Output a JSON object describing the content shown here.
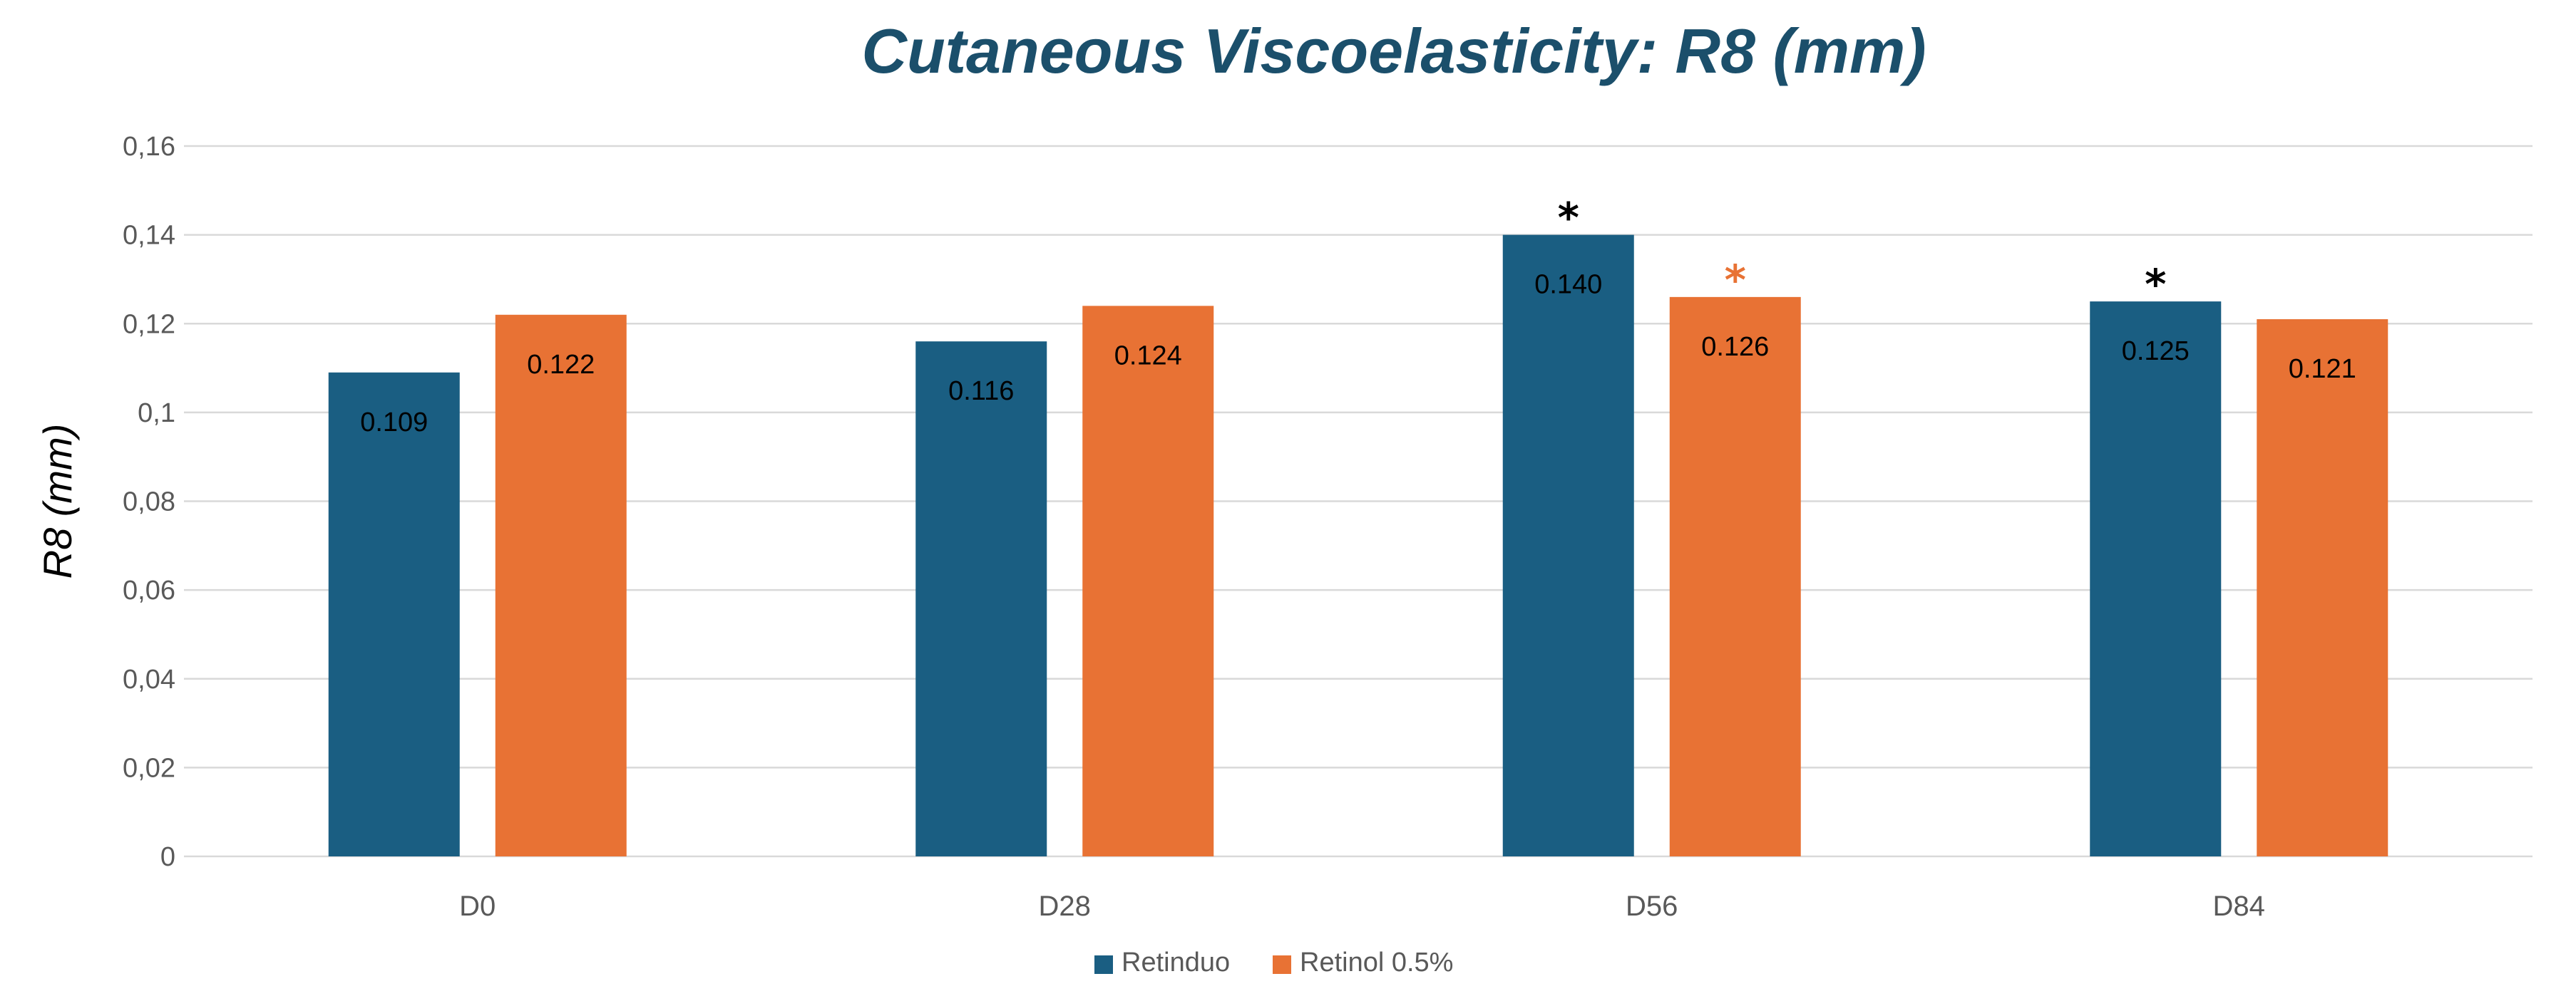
{
  "chart_data": {
    "type": "bar",
    "title": "Cutaneous Viscoelasticity: R8 (mm)",
    "xlabel": "",
    "ylabel": "R8 (mm)",
    "categories": [
      "D0",
      "D28",
      "D56",
      "D84"
    ],
    "ylim": [
      0,
      0.16
    ],
    "yticks": [
      0,
      0.02,
      0.04,
      0.06,
      0.08,
      0.1,
      0.12,
      0.14,
      0.16
    ],
    "ytick_labels": [
      "0",
      "0,02",
      "0,04",
      "0,06",
      "0,08",
      "0,1",
      "0,12",
      "0,14",
      "0,16"
    ],
    "grid": true,
    "legend_position": "bottom",
    "series": [
      {
        "name": "Retinduo",
        "color": "#1a5e82",
        "values": [
          0.109,
          0.116,
          0.14,
          0.125
        ],
        "labels": [
          "0.109",
          "0.116",
          "0.140",
          "0.125"
        ],
        "significance": [
          "",
          "",
          "*",
          "*"
        ]
      },
      {
        "name": "Retinol 0.5%",
        "color": "#e87234",
        "values": [
          0.122,
          0.124,
          0.126,
          0.121
        ],
        "labels": [
          "0.122",
          "0.124",
          "0.126",
          "0.121"
        ],
        "significance": [
          "",
          "",
          "*",
          ""
        ]
      }
    ],
    "colors": {
      "title": "#1b4f6b",
      "gridline": "#d9d9d9",
      "axis": "#d9d9d9",
      "significance_series1": "#000000",
      "significance_series2": "#e87234"
    }
  }
}
